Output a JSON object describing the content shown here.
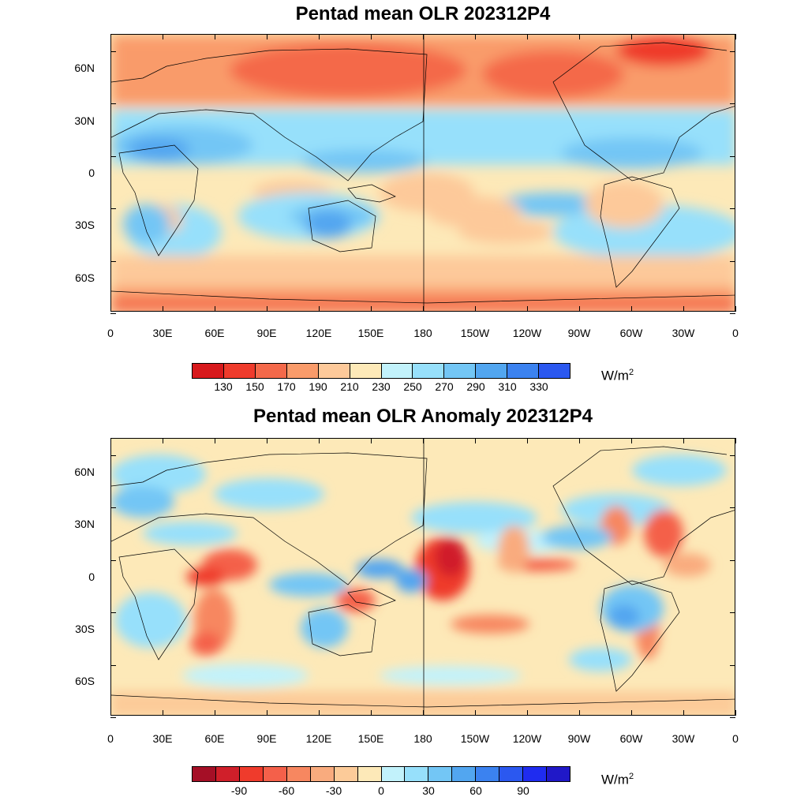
{
  "panels": [
    {
      "title": "Pentad mean OLR 202312P4",
      "units_base": "W/m",
      "units_exp": "2",
      "colorbar": {
        "colors": [
          "#d7191c",
          "#ef3b2c",
          "#f4694a",
          "#f99b6a",
          "#fdc99a",
          "#fde9b8",
          "#c2f2fb",
          "#97e0fb",
          "#73c6f5",
          "#52a6f0",
          "#3b82f0",
          "#2b58f0"
        ],
        "labels": [
          "130",
          "150",
          "170",
          "190",
          "210",
          "230",
          "250",
          "270",
          "290",
          "310",
          "330"
        ]
      }
    },
    {
      "title": "Pentad mean OLR Anomaly 202312P4",
      "units_base": "W/m",
      "units_exp": "2",
      "colorbar": {
        "colors": [
          "#a50f26",
          "#d01f2a",
          "#ef3b2c",
          "#f4604a",
          "#f78760",
          "#f9ab7e",
          "#fccb99",
          "#fde9b8",
          "#c2f2fb",
          "#97e0fb",
          "#73c6f5",
          "#52a6f0",
          "#3b82f0",
          "#2b58f0",
          "#1f2cf0",
          "#2018c8"
        ],
        "labels": [
          "-90",
          "-60",
          "-30",
          "0",
          "30",
          "60",
          "90"
        ]
      }
    }
  ],
  "axes": {
    "y_labels": [
      "60N",
      "30N",
      "0",
      "30S",
      "60S"
    ],
    "x_labels": [
      "0",
      "30E",
      "60E",
      "90E",
      "120E",
      "150E",
      "180",
      "150W",
      "120W",
      "90W",
      "60W",
      "30W",
      "0"
    ]
  }
}
